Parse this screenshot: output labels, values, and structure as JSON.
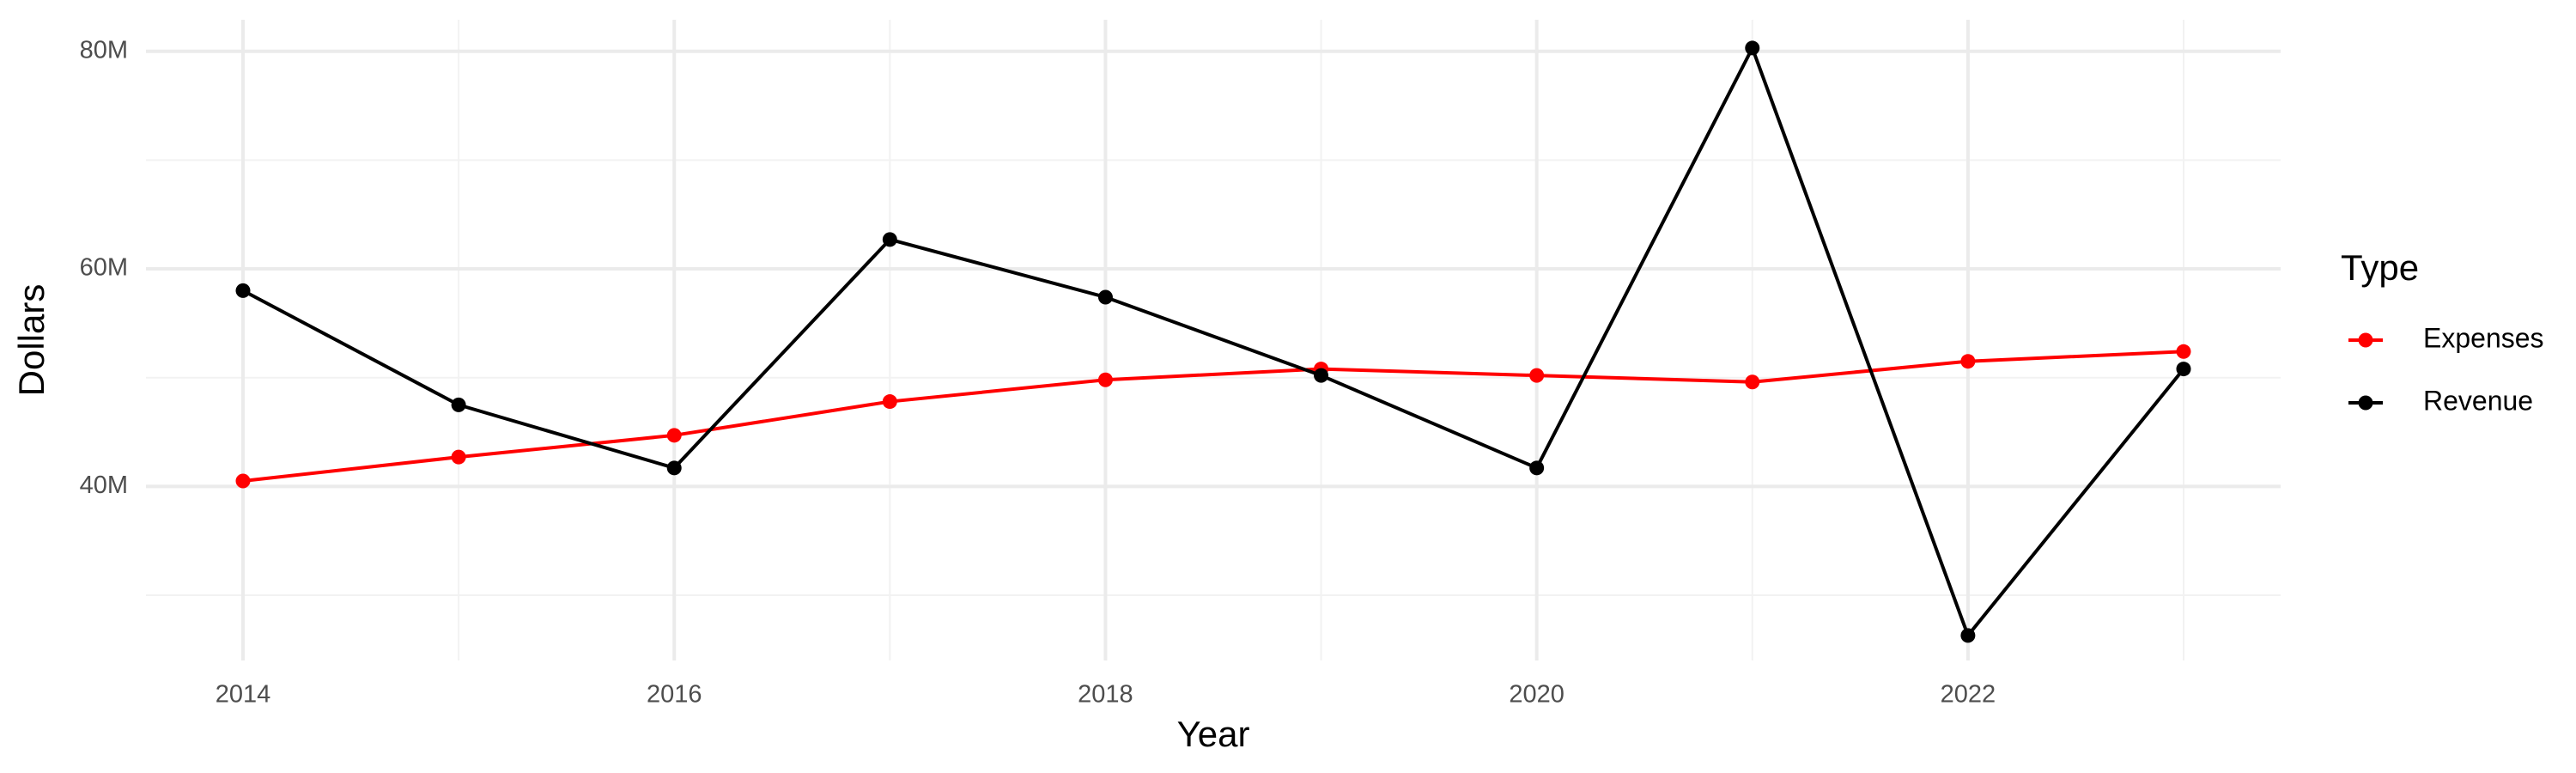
{
  "chart_data": {
    "type": "line",
    "x_label": "Year",
    "y_label": "Dollars",
    "legend_title": "Type",
    "x": [
      2014,
      2015,
      2016,
      2017,
      2018,
      2019,
      2020,
      2021,
      2022,
      2023
    ],
    "series": [
      {
        "name": "Expenses",
        "color": "#ff0000",
        "values": [
          40500000,
          42700000,
          44700000,
          47800000,
          49800000,
          50800000,
          50200000,
          49600000,
          51500000,
          52400000
        ]
      },
      {
        "name": "Revenue",
        "color": "#000000",
        "values": [
          58000000,
          47500000,
          41700000,
          62700000,
          57400000,
          50200000,
          41700000,
          80300000,
          26300000,
          50800000
        ]
      }
    ],
    "xlim": [
      2013.55,
      2023.45
    ],
    "xticks": [
      2014,
      2016,
      2018,
      2020,
      2022
    ],
    "ylim": [
      24000000,
      82900000
    ],
    "yticks": [
      {
        "value": 40000000,
        "label": "40M"
      },
      {
        "value": 60000000,
        "label": "60M"
      },
      {
        "value": 80000000,
        "label": "80M"
      }
    ],
    "grid": true,
    "minor_grid": true,
    "legend_position": "right"
  }
}
